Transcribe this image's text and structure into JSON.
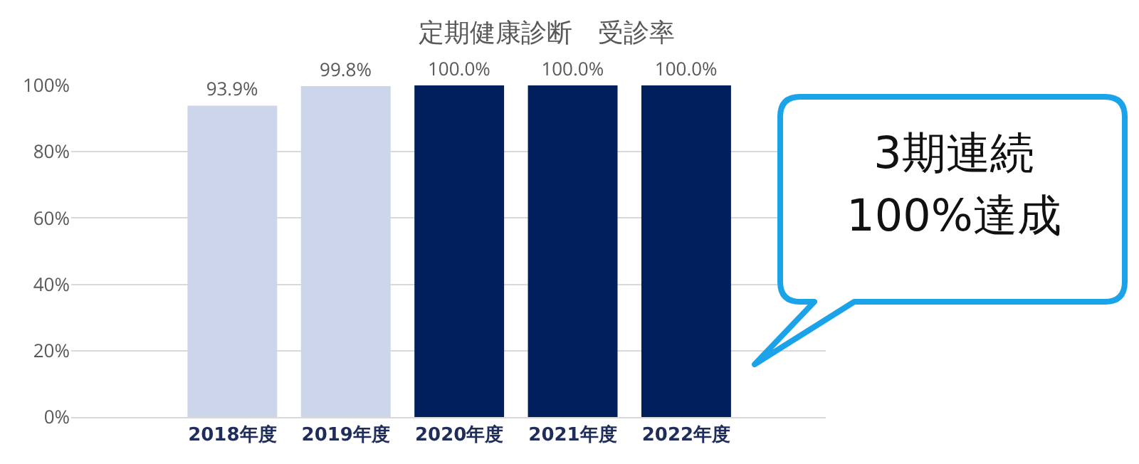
{
  "chart_data": {
    "type": "bar",
    "title": "定期健康診断　受診率",
    "categories": [
      "2018年度",
      "2019年度",
      "2020年度",
      "2021年度",
      "2022年度"
    ],
    "values": [
      93.9,
      99.8,
      100,
      100,
      100
    ],
    "colors": [
      "#cdd5ea",
      "#cdd5ea",
      "#001f5c",
      "#001f5c",
      "#001f5c"
    ],
    "value_labels": [
      "93.9%",
      "99.8%",
      "100.0%",
      "100.0%",
      "100.0%"
    ],
    "ylim": [
      0,
      100
    ],
    "yticks": [
      {
        "value": 0,
        "label": "0%"
      },
      {
        "value": 20,
        "label": "20%"
      },
      {
        "value": 40,
        "label": "40%"
      },
      {
        "value": 60,
        "label": "60%"
      },
      {
        "value": 80,
        "label": "80%"
      },
      {
        "value": 100,
        "label": "100%"
      }
    ],
    "grid": "y",
    "annotations": [
      "3期連続\n100%達成"
    ]
  }
}
